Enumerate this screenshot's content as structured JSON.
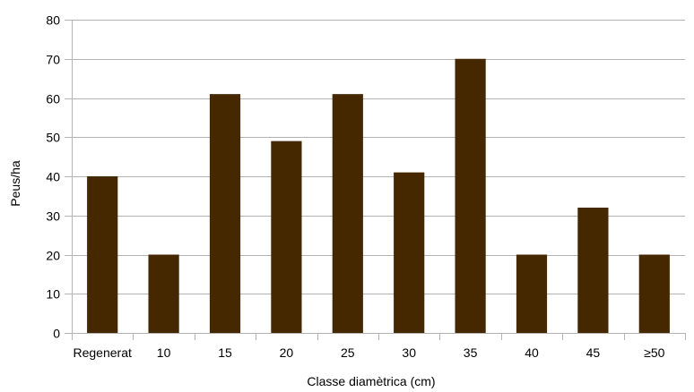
{
  "chart_data": {
    "type": "bar",
    "title": "",
    "xlabel": "Classe diamètrica (cm)",
    "ylabel": "Peus/ha",
    "categories": [
      "Regenerat",
      "10",
      "15",
      "20",
      "25",
      "30",
      "35",
      "40",
      "45",
      "≥50"
    ],
    "values": [
      40,
      20,
      61,
      49,
      61,
      41,
      70,
      20,
      32,
      20
    ],
    "ylim": [
      0,
      80
    ],
    "yticks": [
      0,
      10,
      20,
      30,
      40,
      50,
      60,
      70,
      80
    ],
    "grid": true,
    "legend": "none",
    "bar_color": "#452700",
    "grid_color": "#b3b3b3"
  }
}
